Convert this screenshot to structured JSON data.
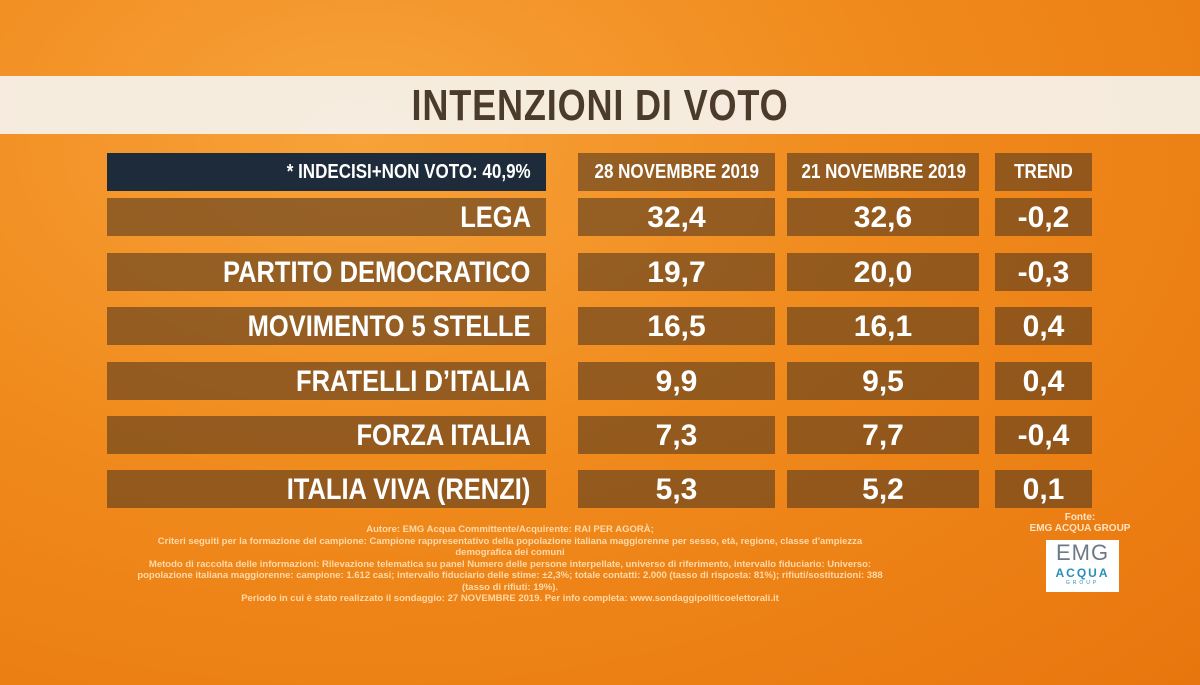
{
  "title": "INTENZIONI DI VOTO",
  "chart_data": {
    "type": "table",
    "note": "* INDECISI+NON VOTO: 40,9%",
    "columns": [
      "28 NOVEMBRE 2019",
      "21 NOVEMBRE 2019",
      "TREND"
    ],
    "rows": [
      {
        "party": "LEGA",
        "values": [
          "32,4",
          "32,6",
          "-0,2"
        ]
      },
      {
        "party": "PARTITO DEMOCRATICO",
        "values": [
          "19,7",
          "20,0",
          "-0,3"
        ]
      },
      {
        "party": "MOVIMENTO 5 STELLE",
        "values": [
          "16,5",
          "16,1",
          "0,4"
        ]
      },
      {
        "party": "FRATELLI D’ITALIA",
        "values": [
          "9,9",
          "9,5",
          "0,4"
        ]
      },
      {
        "party": "FORZA ITALIA",
        "values": [
          "7,3",
          "7,7",
          "-0,4"
        ]
      },
      {
        "party": "ITALIA VIVA (RENZI)",
        "values": [
          "5,3",
          "5,2",
          "0,1"
        ]
      }
    ]
  },
  "footnote": [
    "Autore: EMG Acqua Committente/Acquirente: RAI PER AGORÀ;",
    "Criteri seguiti per la formazione del campione: Campione rappresentativo della popolazione italiana maggiorenne per sesso, età, regione, classe d'ampiezza demografica dei comuni",
    "Metodo di raccolta delle informazioni: Rilevazione telematica su panel Numero delle persone interpellate, universo di riferimento, intervallo fiduciario: Universo:",
    "popolazione italiana maggiorenne: campione: 1.612 casi; intervallo fiduciario delle stime: ±2,3%; totale contatti: 2.000 (tasso di risposta: 81%); rifiuti/sostituzioni: 388 (tasso di rifiuti: 19%).",
    "Periodo in cui è stato realizzato il sondaggio: 27 NOVEMBRE 2019. Per info completa: www.sondaggipoliticoelettorali.it"
  ],
  "source": {
    "label": "Fonte:",
    "name": "EMG ACQUA GROUP",
    "logo": [
      "EMG",
      "ACQUA",
      "GROUP"
    ]
  },
  "colors": {
    "background": "#f08a1c",
    "header_dark": "#1d2b3a",
    "cell": "#5a3c1e",
    "title_text": "#4a3b2c"
  }
}
